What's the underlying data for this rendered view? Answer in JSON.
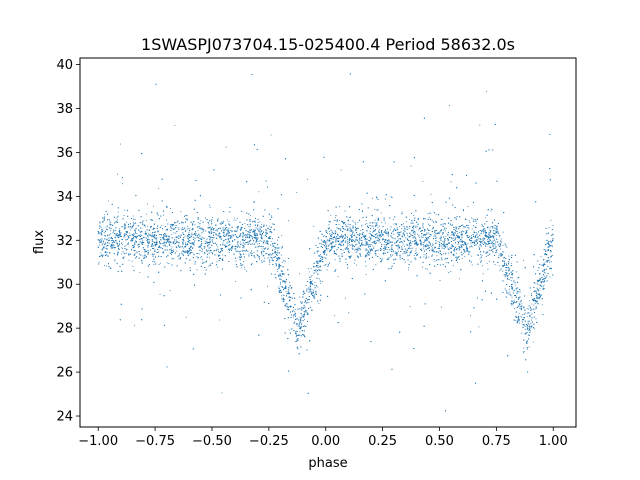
{
  "chart_data": {
    "type": "scatter",
    "title": "1SWASPJ073704.15-025400.4 Period 58632.0s",
    "xlabel": "phase",
    "ylabel": "flux",
    "xlim": [
      -1.08,
      1.1
    ],
    "ylim": [
      23.5,
      40.3
    ],
    "xticks": [
      -1.0,
      -0.75,
      -0.5,
      -0.25,
      0.0,
      0.25,
      0.5,
      0.75,
      1.0
    ],
    "xtick_labels": [
      "−1.00",
      "−0.75",
      "−0.50",
      "−0.25",
      "0.00",
      "0.25",
      "0.50",
      "0.75",
      "1.00"
    ],
    "yticks": [
      24,
      26,
      28,
      30,
      32,
      34,
      36,
      38,
      40
    ],
    "ytick_labels": [
      "24",
      "26",
      "28",
      "30",
      "32",
      "34",
      "36",
      "38",
      "40"
    ],
    "grid": false,
    "point_color": "#1f77b4",
    "series": [
      {
        "phase_range": [
          -1.0,
          1.0
        ],
        "baseline_flux": 32.0,
        "eclipses": [
          {
            "center_phase": -0.12,
            "min_flux": 27.8
          },
          {
            "center_phase": 0.88,
            "min_flux": 27.8
          }
        ],
        "sample_points": [
          [
            -1.0,
            31.8
          ],
          [
            -0.9,
            32.0
          ],
          [
            -0.75,
            31.9
          ],
          [
            -0.6,
            32.1
          ],
          [
            -0.5,
            32.0
          ],
          [
            -0.4,
            31.9
          ],
          [
            -0.3,
            31.8
          ],
          [
            -0.25,
            31.6
          ],
          [
            -0.2,
            30.8
          ],
          [
            -0.15,
            29.0
          ],
          [
            -0.12,
            27.8
          ],
          [
            -0.09,
            28.9
          ],
          [
            -0.05,
            30.6
          ],
          [
            0.0,
            31.7
          ],
          [
            0.1,
            32.0
          ],
          [
            0.25,
            32.1
          ],
          [
            0.4,
            32.0
          ],
          [
            0.5,
            31.9
          ],
          [
            0.6,
            32.0
          ],
          [
            0.7,
            31.9
          ],
          [
            0.75,
            31.6
          ],
          [
            0.8,
            30.8
          ],
          [
            0.85,
            29.0
          ],
          [
            0.88,
            27.8
          ],
          [
            0.91,
            28.9
          ],
          [
            0.95,
            30.6
          ],
          [
            1.0,
            31.7
          ]
        ]
      }
    ]
  }
}
